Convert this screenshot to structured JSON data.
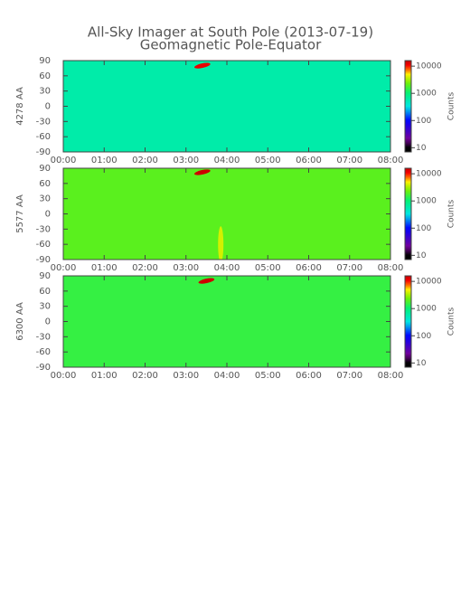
{
  "title": "All-Sky Imager at South Pole (2013-07-19)",
  "subtitle": "Geomagnetic Pole-Equator",
  "chart_data": [
    {
      "type": "heatmap",
      "ylabel": "4278 AA",
      "colorbar_label": "Counts",
      "log_color": true,
      "xlim": [
        0,
        8
      ],
      "xticks": [
        {
          "value": 0,
          "label": "00:00"
        },
        {
          "value": 1,
          "label": "01:00"
        },
        {
          "value": 2,
          "label": "02:00"
        },
        {
          "value": 3,
          "label": "03:00"
        },
        {
          "value": 4,
          "label": "04:00"
        },
        {
          "value": 5,
          "label": "05:00"
        },
        {
          "value": 6,
          "label": "06:00"
        },
        {
          "value": 7,
          "label": "07:00"
        },
        {
          "value": 8,
          "label": "08:00"
        }
      ],
      "ylim": [
        -90,
        90
      ],
      "yticks": [
        -90,
        -60,
        -30,
        0,
        30,
        60,
        90
      ],
      "clim": [
        7,
        16000
      ],
      "cticks": [
        10,
        100,
        1000,
        10000
      ],
      "background": 600,
      "peaks": [
        {
          "x": 3.4,
          "y": 80,
          "value": 12000
        }
      ]
    },
    {
      "type": "heatmap",
      "ylabel": "5577 AA",
      "colorbar_label": "Counts",
      "log_color": true,
      "xlim": [
        0,
        8
      ],
      "xticks": [
        {
          "value": 0,
          "label": "00:00"
        },
        {
          "value": 1,
          "label": "01:00"
        },
        {
          "value": 2,
          "label": "02:00"
        },
        {
          "value": 3,
          "label": "03:00"
        },
        {
          "value": 4,
          "label": "04:00"
        },
        {
          "value": 5,
          "label": "05:00"
        },
        {
          "value": 6,
          "label": "06:00"
        },
        {
          "value": 7,
          "label": "07:00"
        },
        {
          "value": 8,
          "label": "08:00"
        }
      ],
      "ylim": [
        -90,
        90
      ],
      "yticks": [
        -90,
        -60,
        -30,
        0,
        30,
        60,
        90
      ],
      "clim": [
        7,
        16000
      ],
      "cticks": [
        10,
        100,
        1000,
        10000
      ],
      "background": 2000,
      "peaks": [
        {
          "x": 3.4,
          "y": 82,
          "value": 15000
        },
        {
          "x": 3.85,
          "y": -60,
          "value": 4000
        }
      ]
    },
    {
      "type": "heatmap",
      "ylabel": "6300 AA",
      "colorbar_label": "Counts",
      "log_color": true,
      "xlim": [
        0,
        8
      ],
      "xticks": [
        {
          "value": 0,
          "label": "00:00"
        },
        {
          "value": 1,
          "label": "01:00"
        },
        {
          "value": 2,
          "label": "02:00"
        },
        {
          "value": 3,
          "label": "03:00"
        },
        {
          "value": 4,
          "label": "04:00"
        },
        {
          "value": 5,
          "label": "05:00"
        },
        {
          "value": 6,
          "label": "06:00"
        },
        {
          "value": 7,
          "label": "07:00"
        },
        {
          "value": 8,
          "label": "08:00"
        }
      ],
      "ylim": [
        -90,
        90
      ],
      "yticks": [
        -90,
        -60,
        -30,
        0,
        30,
        60,
        90
      ],
      "clim": [
        7,
        16000
      ],
      "cticks": [
        10,
        100,
        1000,
        10000
      ],
      "background": 1500,
      "peaks": [
        {
          "x": 3.5,
          "y": 80,
          "value": 15000
        }
      ]
    }
  ]
}
